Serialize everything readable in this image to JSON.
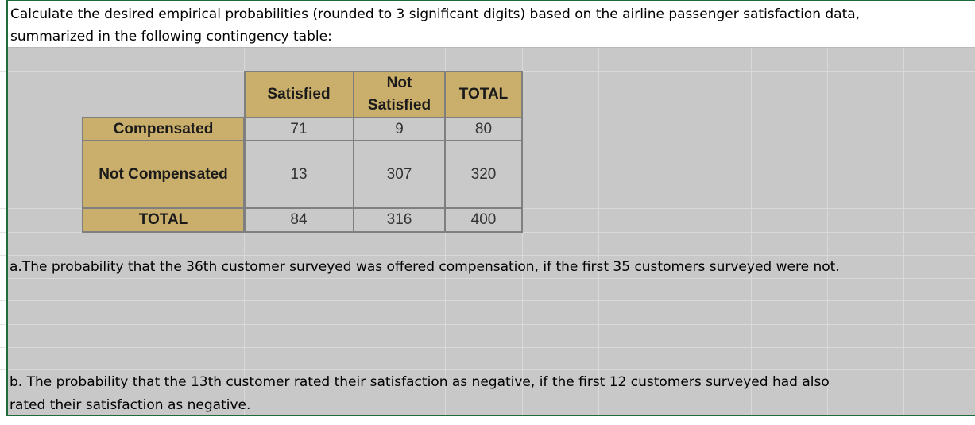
{
  "header": {
    "line1": "Calculate the desired empirical probabilities (rounded to 3 significant digits) based on the airline passenger satisfaction data,",
    "line2": "summarized in the following contingency table:"
  },
  "table": {
    "col_headers": [
      "Satisfied",
      "Not\nSatisfied",
      "TOTAL"
    ],
    "col_header_not": "Not",
    "col_header_satisfied": "Satisfied",
    "rows": [
      {
        "label": "Compensated",
        "values": [
          "71",
          "9",
          "80"
        ]
      },
      {
        "label": "Not Compensated",
        "values": [
          "13",
          "307",
          "320"
        ]
      },
      {
        "label": "TOTAL",
        "values": [
          "84",
          "316",
          "400"
        ]
      }
    ]
  },
  "questions": {
    "a": "a.The probability that the 36th customer surveyed was offered compensation, if the first 35 customers surveyed were not.",
    "b_line1": "b. The probability that the 13th customer rated their satisfaction as negative, if the first 12 customers surveyed had also",
    "b_line2": "rated their satisfaction as negative."
  },
  "colors": {
    "header_fill": "#c9ae6c",
    "sheet_gray": "#c8c8c8",
    "excel_green": "#1e6b3b"
  }
}
